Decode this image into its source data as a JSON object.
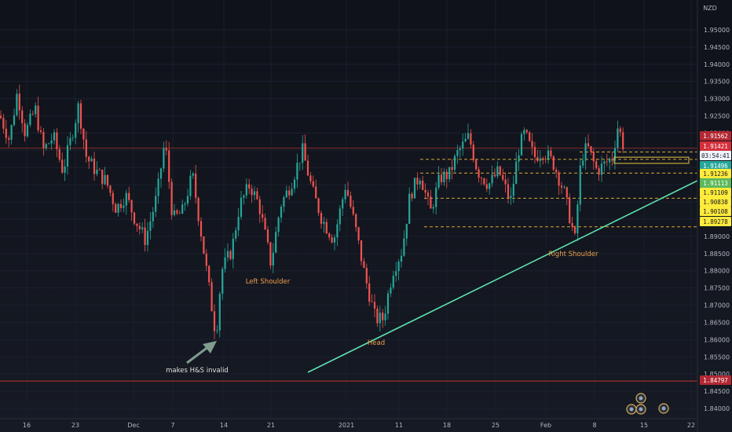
{
  "chart_data": {
    "type": "candlestick",
    "currency": "NZD",
    "ylim": [
      1.838,
      1.958
    ],
    "y_ticks": [
      "1.95000",
      "1.94500",
      "1.94000",
      "1.93500",
      "1.93000",
      "1.92500",
      "1.92000",
      "1.91500",
      "1.91000",
      "1.90500",
      "1.90000",
      "1.89500",
      "1.89000",
      "1.88500",
      "1.88000",
      "1.87500",
      "1.87000",
      "1.86500",
      "1.86000",
      "1.85500",
      "1.85000",
      "1.84500",
      "1.84000"
    ],
    "x_ticks": [
      "16",
      "23",
      "Dec",
      "7",
      "14",
      "21",
      "2021",
      "11",
      "18",
      "25",
      "Feb",
      "8",
      "15",
      "22"
    ],
    "price_labels": [
      {
        "value": "1.91562",
        "y": 1.91562,
        "bg": "#b22833",
        "fg": "#ffffff"
      },
      {
        "value": "1.91421",
        "y": 1.91421,
        "bg": "#d4303b",
        "fg": "#ffffff"
      },
      {
        "value": "03:54:41",
        "y": 1.91335,
        "bg": "#f0f3fa",
        "fg": "#131722"
      },
      {
        "value": "1.91496",
        "y": 1.91496,
        "bg": "#26a69a",
        "fg": "#ffffff"
      },
      {
        "value": "1.91236",
        "y": 1.91236,
        "bg": "#ffeb3b",
        "fg": "#131722"
      },
      {
        "value": "1.91113",
        "y": 1.91113,
        "bg": "#5cb85c",
        "fg": "#ffffff"
      },
      {
        "value": "1.91109",
        "y": 1.91109,
        "bg": "#ffeb3b",
        "fg": "#131722"
      },
      {
        "value": "1.90838",
        "y": 1.90838,
        "bg": "#ffeb3b",
        "fg": "#131722"
      },
      {
        "value": "1.90108",
        "y": 1.90108,
        "bg": "#ffeb3b",
        "fg": "#131722"
      },
      {
        "value": "1.89278",
        "y": 1.89278,
        "bg": "#ffeb3b",
        "fg": "#131722"
      },
      {
        "value": "1.84797",
        "y": 1.84797,
        "bg": "#b22833",
        "fg": "#ffffff"
      }
    ],
    "horizontal_levels": [
      {
        "y": 1.91562,
        "style": "solid",
        "color": "#8a2b2b"
      },
      {
        "y": 1.84797,
        "style": "solid",
        "color": "#c0392b"
      },
      {
        "y": 1.91236,
        "style": "dashed",
        "color": "#d7a836"
      },
      {
        "y": 1.90838,
        "style": "dashed",
        "color": "#d7a836"
      },
      {
        "y": 1.90108,
        "style": "dashed",
        "color": "#d7a836"
      },
      {
        "y": 1.89278,
        "style": "dashed",
        "color": "#d7a836"
      }
    ],
    "annotations": [
      {
        "text": "Left Shoulder",
        "color": "#f0a04b"
      },
      {
        "text": "Head",
        "color": "#f0a04b"
      },
      {
        "text": "Right Shoulder",
        "color": "#f0a04b"
      },
      {
        "text": "makes H&S invalid",
        "color": "#e0e0e0"
      }
    ],
    "trendline": {
      "from": [
        "2020-12-20",
        1.8494
      ],
      "to": [
        "2021-02-26",
        1.9109
      ],
      "color": "#5ee0b0"
    },
    "colors": {
      "up": "#26a69a",
      "down": "#ef5350",
      "background": "#131722"
    }
  }
}
